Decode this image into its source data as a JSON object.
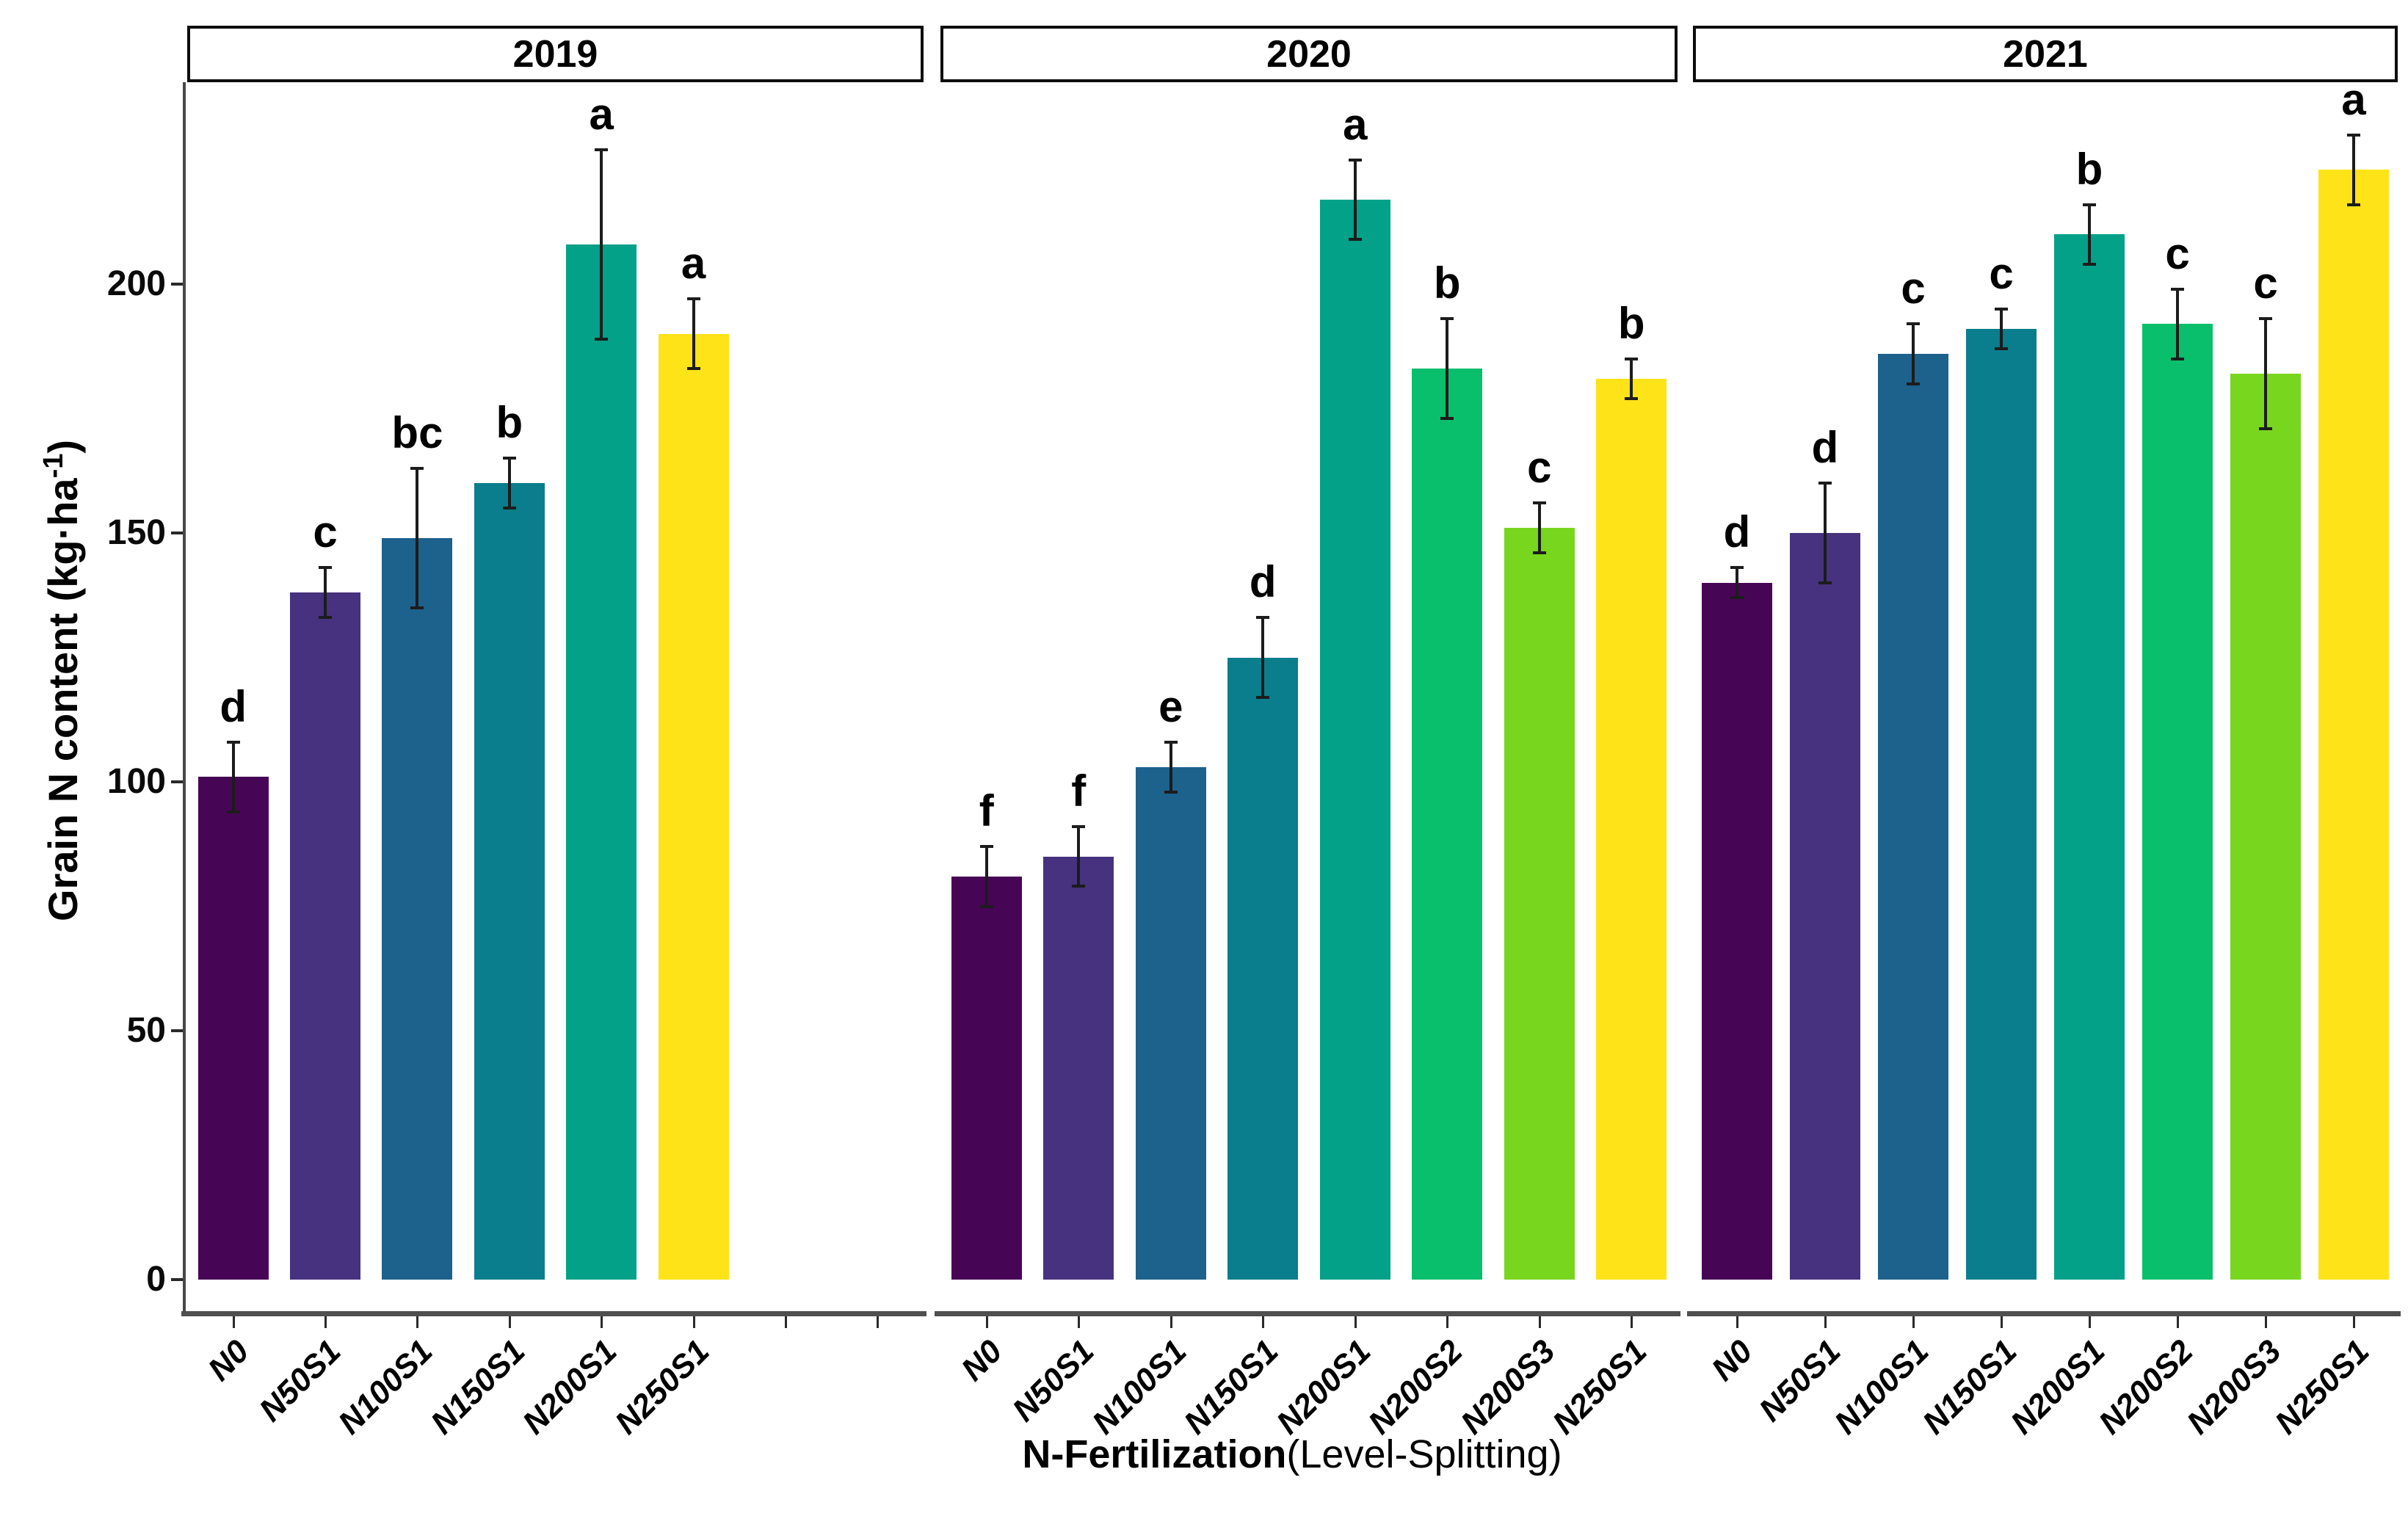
{
  "chart_data": {
    "type": "bar",
    "title": "",
    "ylabel_prefix": "Grain N content (kg·ha",
    "ylabel_sup": "-1",
    "ylabel_suffix": ")",
    "xlabel_main": "N-Fertilization",
    "xlabel_paren": "(Level-Splitting)",
    "yticks": [
      0,
      50,
      100,
      150,
      200
    ],
    "ylim": [
      0,
      240
    ],
    "grid": false,
    "legend_position": "none",
    "error_bars": true,
    "bar_colors": {
      "N0": "#470556",
      "N50S1": "#46327e",
      "N100S1": "#1d618d",
      "N150S1": "#0a7e8c",
      "N200S1": "#03a188",
      "N200S2": "#0abf6b",
      "N200S3": "#79d61f",
      "N250S1": "#fde317"
    },
    "panels": [
      {
        "year": "2019",
        "slots": 8,
        "categories": [
          "N0",
          "N50S1",
          "N100S1",
          "N150S1",
          "N200S1",
          "N250S1"
        ],
        "values": [
          101,
          138,
          149,
          160,
          208,
          190
        ],
        "errors": [
          7,
          5,
          14,
          5,
          19,
          7
        ],
        "letters": [
          "d",
          "c",
          "bc",
          "b",
          "a",
          "a"
        ]
      },
      {
        "year": "2020",
        "slots": 8,
        "categories": [
          "N0",
          "N50S1",
          "N100S1",
          "N150S1",
          "N200S1",
          "N200S2",
          "N200S3",
          "N250S1"
        ],
        "values": [
          81,
          85,
          103,
          125,
          217,
          183,
          151,
          181
        ],
        "errors": [
          6,
          6,
          5,
          8,
          8,
          10,
          5,
          4
        ],
        "letters": [
          "f",
          "f",
          "e",
          "d",
          "a",
          "b",
          "c",
          "b"
        ]
      },
      {
        "year": "2021",
        "slots": 8,
        "categories": [
          "N0",
          "N50S1",
          "N100S1",
          "N150S1",
          "N200S1",
          "N200S2",
          "N200S3",
          "N250S1"
        ],
        "values": [
          140,
          150,
          186,
          191,
          210,
          192,
          182,
          223
        ],
        "errors": [
          3,
          10,
          6,
          4,
          6,
          7,
          11,
          7
        ],
        "letters": [
          "d",
          "d",
          "c",
          "c",
          "b",
          "c",
          "c",
          "a"
        ]
      }
    ]
  }
}
